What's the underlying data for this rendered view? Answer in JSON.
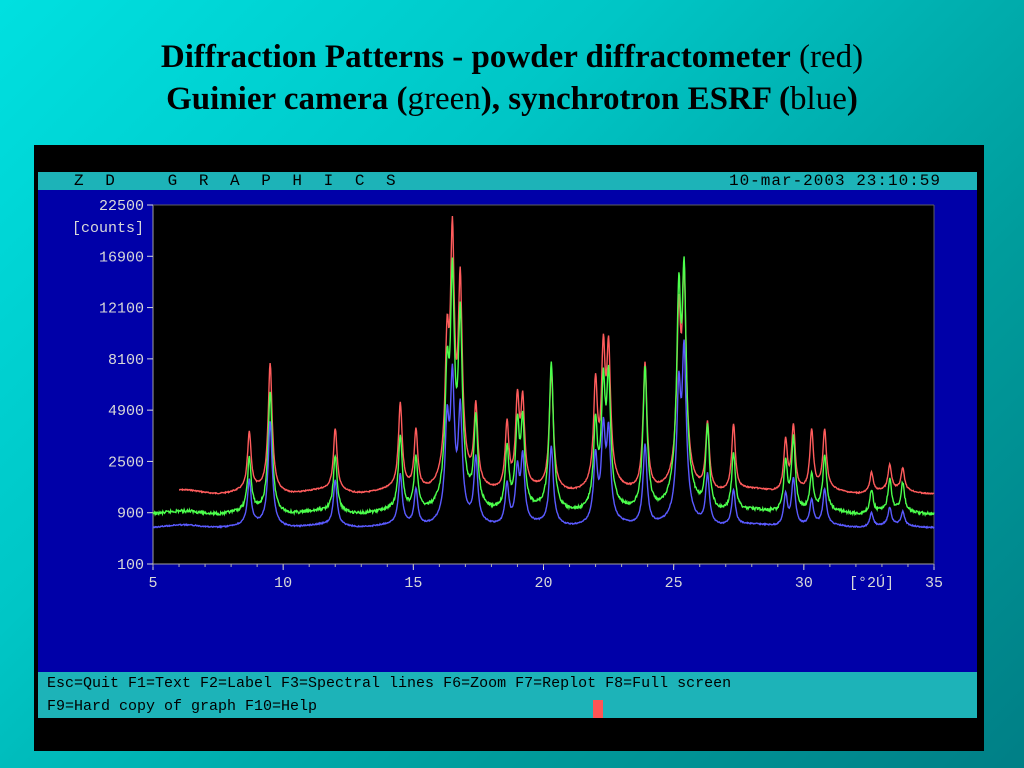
{
  "slide": {
    "title_line1_bold": "Diffraction Patterns - powder diffractometer",
    "title_line1_normal": "(red)",
    "title_line2_bold_a": "Guinier camera (",
    "title_line2_normal_a": "green",
    "title_line2_bold_b": "), synchrotron ESRF (",
    "title_line2_normal_b": "blue",
    "title_line2_bold_c": ")"
  },
  "app": {
    "name": "Z D   G R A P H I C S",
    "datetime": "10-mar-2003 23:10:59"
  },
  "function_keys": {
    "line1": "Esc=Quit F1=Text F2=Label F3=Spectral lines F6=Zoom F7=Replot F8=Full screen",
    "line2": "F9=Hard copy of graph F10=Help"
  },
  "colors": {
    "panel": "#0000a8",
    "bar": "#1db3b8",
    "red": "#ff5c5c",
    "green": "#4cff4c",
    "blue": "#5a5aff"
  },
  "chart_data": {
    "type": "line",
    "ylabel": "[counts]",
    "xlabel": "[°2Ú]",
    "y_scale": "sqrt",
    "ylim": [
      100,
      22500
    ],
    "xlim": [
      5,
      35
    ],
    "yticks": [
      "100",
      "900",
      "2500",
      "4900",
      "8100",
      "12100",
      "16900",
      "22500"
    ],
    "xticks": [
      "5",
      "10",
      "15",
      "20",
      "25",
      "30",
      "35"
    ],
    "grid": false,
    "series": [
      {
        "name": "red",
        "color": "#ff5c5c",
        "x_start": 6.0,
        "baseline": 1450,
        "peaks": [
          {
            "x": 8.7,
            "y": 3700
          },
          {
            "x": 9.5,
            "y": 7800
          },
          {
            "x": 12.0,
            "y": 3900
          },
          {
            "x": 14.5,
            "y": 5200
          },
          {
            "x": 15.1,
            "y": 3800
          },
          {
            "x": 16.3,
            "y": 9000
          },
          {
            "x": 16.5,
            "y": 19500
          },
          {
            "x": 16.8,
            "y": 14500
          },
          {
            "x": 17.4,
            "y": 5000
          },
          {
            "x": 18.6,
            "y": 4200
          },
          {
            "x": 19.0,
            "y": 5500
          },
          {
            "x": 19.2,
            "y": 5400
          },
          {
            "x": 20.3,
            "y": 7300
          },
          {
            "x": 22.0,
            "y": 6500
          },
          {
            "x": 22.3,
            "y": 8700
          },
          {
            "x": 22.5,
            "y": 8700
          },
          {
            "x": 23.9,
            "y": 7800
          },
          {
            "x": 25.2,
            "y": 11500
          },
          {
            "x": 25.4,
            "y": 15000
          },
          {
            "x": 26.3,
            "y": 4200
          },
          {
            "x": 27.3,
            "y": 4100
          },
          {
            "x": 29.3,
            "y": 3400
          },
          {
            "x": 29.6,
            "y": 4100
          },
          {
            "x": 30.3,
            "y": 3800
          },
          {
            "x": 30.8,
            "y": 3800
          },
          {
            "x": 32.6,
            "y": 2100
          },
          {
            "x": 33.3,
            "y": 2300
          },
          {
            "x": 33.8,
            "y": 2200
          }
        ]
      },
      {
        "name": "green",
        "color": "#4cff4c",
        "x_start": 5.0,
        "baseline": 900,
        "peaks": [
          {
            "x": 8.7,
            "y": 2600
          },
          {
            "x": 9.5,
            "y": 6000
          },
          {
            "x": 12.0,
            "y": 2700
          },
          {
            "x": 14.5,
            "y": 3600
          },
          {
            "x": 15.1,
            "y": 2600
          },
          {
            "x": 16.3,
            "y": 7000
          },
          {
            "x": 16.5,
            "y": 15200
          },
          {
            "x": 16.8,
            "y": 11500
          },
          {
            "x": 17.4,
            "y": 4400
          },
          {
            "x": 18.6,
            "y": 3000
          },
          {
            "x": 19.0,
            "y": 4200
          },
          {
            "x": 19.2,
            "y": 4300
          },
          {
            "x": 20.3,
            "y": 7800
          },
          {
            "x": 22.0,
            "y": 4200
          },
          {
            "x": 22.3,
            "y": 6400
          },
          {
            "x": 22.5,
            "y": 6800
          },
          {
            "x": 23.9,
            "y": 7600
          },
          {
            "x": 25.2,
            "y": 13500
          },
          {
            "x": 25.4,
            "y": 15400
          },
          {
            "x": 26.3,
            "y": 4000
          },
          {
            "x": 27.3,
            "y": 2800
          },
          {
            "x": 29.3,
            "y": 2500
          },
          {
            "x": 29.6,
            "y": 3500
          },
          {
            "x": 30.3,
            "y": 2000
          },
          {
            "x": 30.8,
            "y": 2700
          },
          {
            "x": 32.6,
            "y": 1500
          },
          {
            "x": 33.3,
            "y": 1800
          },
          {
            "x": 33.8,
            "y": 1700
          }
        ]
      },
      {
        "name": "blue",
        "color": "#5a5aff",
        "x_start": 5.0,
        "baseline": 610,
        "peaks": [
          {
            "x": 8.7,
            "y": 1800
          },
          {
            "x": 9.5,
            "y": 4300
          },
          {
            "x": 12.0,
            "y": 1800
          },
          {
            "x": 14.5,
            "y": 2000
          },
          {
            "x": 15.1,
            "y": 1500
          },
          {
            "x": 16.3,
            "y": 4300
          },
          {
            "x": 16.5,
            "y": 7000
          },
          {
            "x": 16.8,
            "y": 5000
          },
          {
            "x": 17.4,
            "y": 2600
          },
          {
            "x": 18.6,
            "y": 1700
          },
          {
            "x": 19.0,
            "y": 2200
          },
          {
            "x": 19.2,
            "y": 2700
          },
          {
            "x": 20.3,
            "y": 3100
          },
          {
            "x": 22.0,
            "y": 2700
          },
          {
            "x": 22.3,
            "y": 4000
          },
          {
            "x": 22.5,
            "y": 3800
          },
          {
            "x": 23.9,
            "y": 3200
          },
          {
            "x": 25.2,
            "y": 6200
          },
          {
            "x": 25.4,
            "y": 8800
          },
          {
            "x": 26.3,
            "y": 2000
          },
          {
            "x": 27.3,
            "y": 1500
          },
          {
            "x": 29.3,
            "y": 1400
          },
          {
            "x": 29.6,
            "y": 1900
          },
          {
            "x": 30.3,
            "y": 1200
          },
          {
            "x": 30.8,
            "y": 1500
          },
          {
            "x": 32.6,
            "y": 900
          },
          {
            "x": 33.3,
            "y": 1000
          },
          {
            "x": 33.8,
            "y": 900
          }
        ]
      }
    ]
  }
}
